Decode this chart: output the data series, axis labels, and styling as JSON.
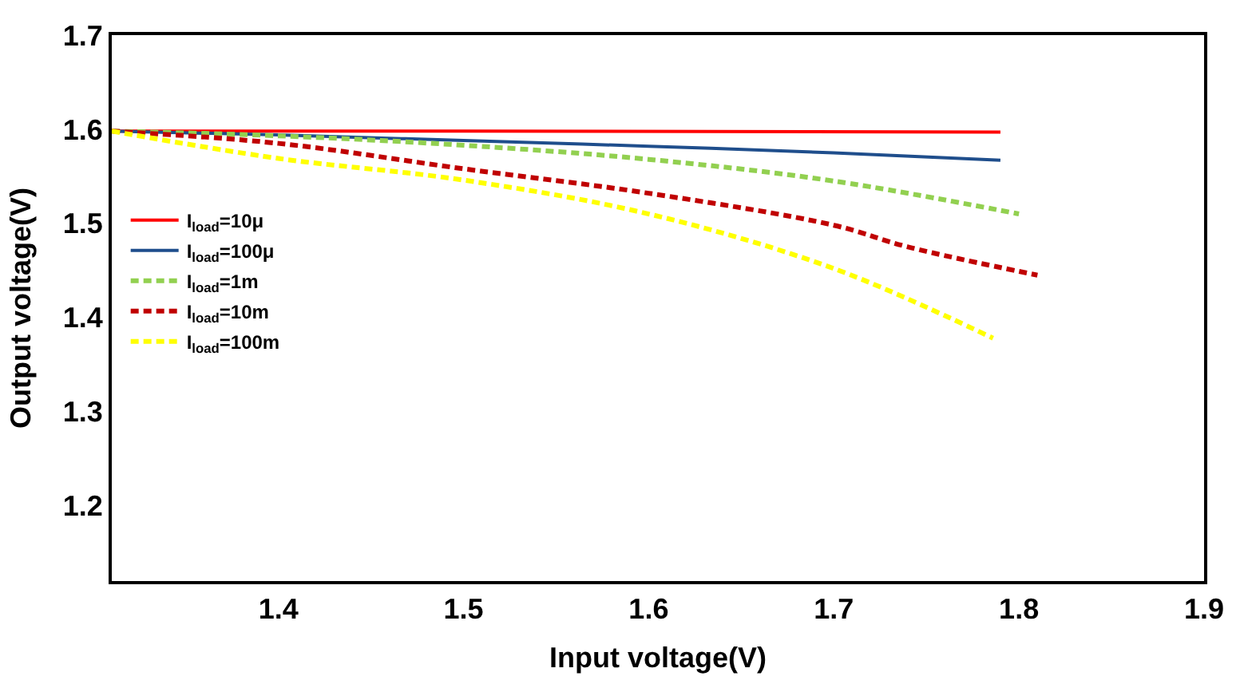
{
  "chart_data": {
    "type": "line",
    "xlabel": "Input voltage(V)",
    "ylabel": "Output voltage(V)",
    "xlim": [
      1.31,
      1.9
    ],
    "ylim": [
      1.12,
      1.7
    ],
    "xticks": [
      1.4,
      1.5,
      1.6,
      1.7,
      1.8,
      1.9
    ],
    "yticks": [
      1.2,
      1.3,
      1.4,
      1.5,
      1.6,
      1.7
    ],
    "legend": "left",
    "marker": "none",
    "series": [
      {
        "name": "I$_{load}$=10μ",
        "color": "#ff0000",
        "line_style": "solid",
        "x": [
          1.31,
          1.5,
          1.79
        ],
        "values": [
          1.598,
          1.598,
          1.597
        ]
      },
      {
        "name": "I$_{load}$=100μ",
        "color": "#1f4e8c",
        "line_style": "solid",
        "x": [
          1.31,
          1.4,
          1.5,
          1.6,
          1.7,
          1.79
        ],
        "values": [
          1.598,
          1.594,
          1.588,
          1.582,
          1.575,
          1.567
        ]
      },
      {
        "name": "I$_{load}$=1m",
        "color": "#92d050",
        "line_style": "dashed",
        "x": [
          1.31,
          1.4,
          1.5,
          1.6,
          1.7,
          1.8
        ],
        "values": [
          1.598,
          1.593,
          1.583,
          1.568,
          1.545,
          1.51
        ]
      },
      {
        "name": "I$_{load}$=10m",
        "color": "#c00000",
        "line_style": "dashed",
        "x": [
          1.31,
          1.4,
          1.5,
          1.6,
          1.7,
          1.74,
          1.81
        ],
        "values": [
          1.598,
          1.585,
          1.558,
          1.532,
          1.498,
          1.475,
          1.445
        ]
      },
      {
        "name": "I$_{load}$=100m",
        "color": "#ffff00",
        "line_style": "dashed",
        "x": [
          1.31,
          1.4,
          1.5,
          1.6,
          1.7,
          1.786
        ],
        "values": [
          1.598,
          1.569,
          1.546,
          1.51,
          1.452,
          1.378
        ]
      }
    ]
  }
}
